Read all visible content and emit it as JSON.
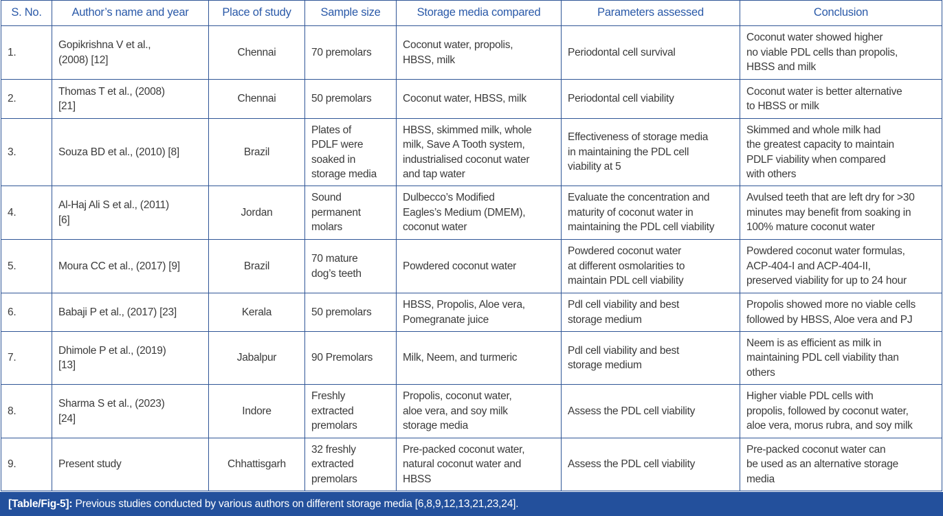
{
  "columns": [
    "S. No.",
    "Author’s name and year",
    "Place of study",
    "Sample size",
    "Storage media compared",
    "Parameters assessed",
    "Conclusion"
  ],
  "rows": [
    [
      "1.",
      "Gopikrishna V et al.,\n(2008) [12]",
      "Chennai",
      "70 premolars",
      "Coconut water, propolis,\nHBSS, milk",
      "Periodontal cell survival",
      "Coconut water showed higher\nno viable PDL cells than propolis,\nHBSS and milk"
    ],
    [
      "2.",
      "Thomas T et al., (2008)\n[21]",
      "Chennai",
      "50 premolars",
      "Coconut water, HBSS, milk",
      "Periodontal cell viability",
      "Coconut water is better alternative\nto HBSS or milk"
    ],
    [
      "3.",
      "Souza BD et al., (2010) [8]",
      "Brazil",
      "Plates of\nPDLF were\nsoaked in\nstorage media",
      "HBSS, skimmed milk, whole\nmilk, Save A Tooth system,\nindustrialised coconut water\nand tap water",
      "Effectiveness of storage media\nin maintaining the PDL cell\nviability at 5",
      "Skimmed and whole milk had\nthe greatest capacity to maintain\nPDLF viability when compared\nwith others"
    ],
    [
      "4.",
      "Al-Haj Ali S et al., (2011)\n[6]",
      "Jordan",
      "Sound\npermanent\nmolars",
      "Dulbecco’s Modified\nEagles’s Medium (DMEM),\ncoconut water",
      "Evaluate the concentration and\nmaturity of coconut water in\nmaintaining the PDL cell viability",
      "Avulsed teeth that are left dry for >30\nminutes may benefit from soaking in\n100% mature coconut water"
    ],
    [
      "5.",
      "Moura CC et al., (2017) [9]",
      "Brazil",
      "70 mature\ndog’s teeth",
      "Powdered coconut water",
      "Powdered coconut water\nat different osmolarities to\nmaintain PDL cell viability",
      "Powdered coconut water formulas,\nACP-404-I and ACP-404-II,\npreserved viability for up to 24 hour"
    ],
    [
      "6.",
      "Babaji P et al., (2017) [23]",
      "Kerala",
      "50 premolars",
      "HBSS, Propolis, Aloe vera,\nPomegranate juice",
      "Pdl cell viability and best\nstorage medium",
      "Propolis showed more no viable cells\nfollowed by HBSS, Aloe vera and PJ"
    ],
    [
      "7.",
      "Dhimole P et al., (2019)\n[13]",
      "Jabalpur",
      "90 Premolars",
      "Milk, Neem, and turmeric",
      "Pdl cell viability and best\nstorage medium",
      "Neem is as efficient as milk in\nmaintaining PDL cell viability than\nothers"
    ],
    [
      "8.",
      "Sharma S et al., (2023)\n[24]",
      "Indore",
      "Freshly\nextracted\npremolars",
      "Propolis, coconut water,\naloe vera, and soy milk\nstorage media",
      "Assess the PDL cell viability",
      "Higher viable PDL cells with\npropolis, followed by coconut water,\naloe vera, morus rubra, and soy milk"
    ],
    [
      "9.",
      "Present study",
      "Chhattisgarh",
      "32 freshly\nextracted\npremolars",
      "Pre-packed coconut water,\nnatural coconut water and\nHBSS",
      "Assess the PDL cell viability",
      "Pre-packed coconut water can\nbe used as an alternative storage\nmedia"
    ]
  ],
  "caption": {
    "label": "[Table/Fig-5]:",
    "text": " Previous studies conducted by various authors on different storage media [6,8,9,12,13,21,23,24]."
  },
  "colors": {
    "accent": "#23509c",
    "header_text": "#2a59a8",
    "border": "#2f5596"
  }
}
